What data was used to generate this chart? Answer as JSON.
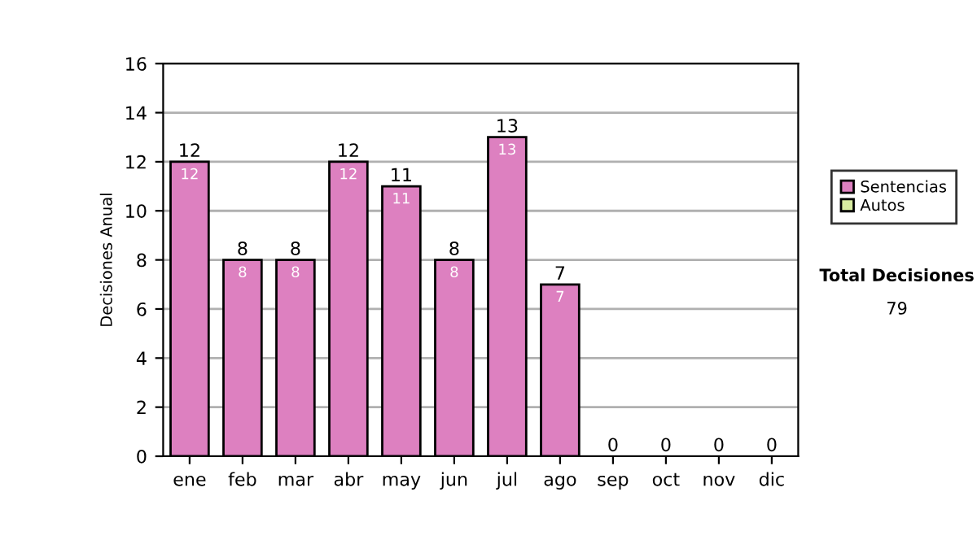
{
  "chart_data": {
    "type": "bar",
    "stacked": true,
    "ylabel": "Decisiones Anual",
    "categories": [
      "ene",
      "feb",
      "mar",
      "abr",
      "may",
      "jun",
      "jul",
      "ago",
      "sep",
      "oct",
      "nov",
      "dic"
    ],
    "series": [
      {
        "name": "Sentencias",
        "color": "#dd80c0",
        "values": [
          12,
          8,
          8,
          12,
          11,
          8,
          13,
          7,
          0,
          0,
          0,
          0
        ],
        "value_labels": [
          "12",
          "8",
          "8",
          "12",
          "11",
          "8",
          "13",
          "7",
          null,
          null,
          null,
          null
        ]
      },
      {
        "name": "Autos",
        "color": "#d8eca0",
        "values": [
          0,
          0,
          0,
          0,
          0,
          0,
          0,
          0,
          0,
          0,
          0,
          0
        ]
      }
    ],
    "totals": [
      "12",
      "8",
      "8",
      "12",
      "11",
      "8",
      "13",
      "7",
      "0",
      "0",
      "0",
      "0"
    ],
    "ylim": [
      0,
      16
    ],
    "yticks": [
      0,
      2,
      4,
      6,
      8,
      10,
      12,
      14,
      16
    ],
    "grid": "y",
    "legend": "right",
    "annotations": [
      "Total Decisiones",
      "79"
    ]
  }
}
